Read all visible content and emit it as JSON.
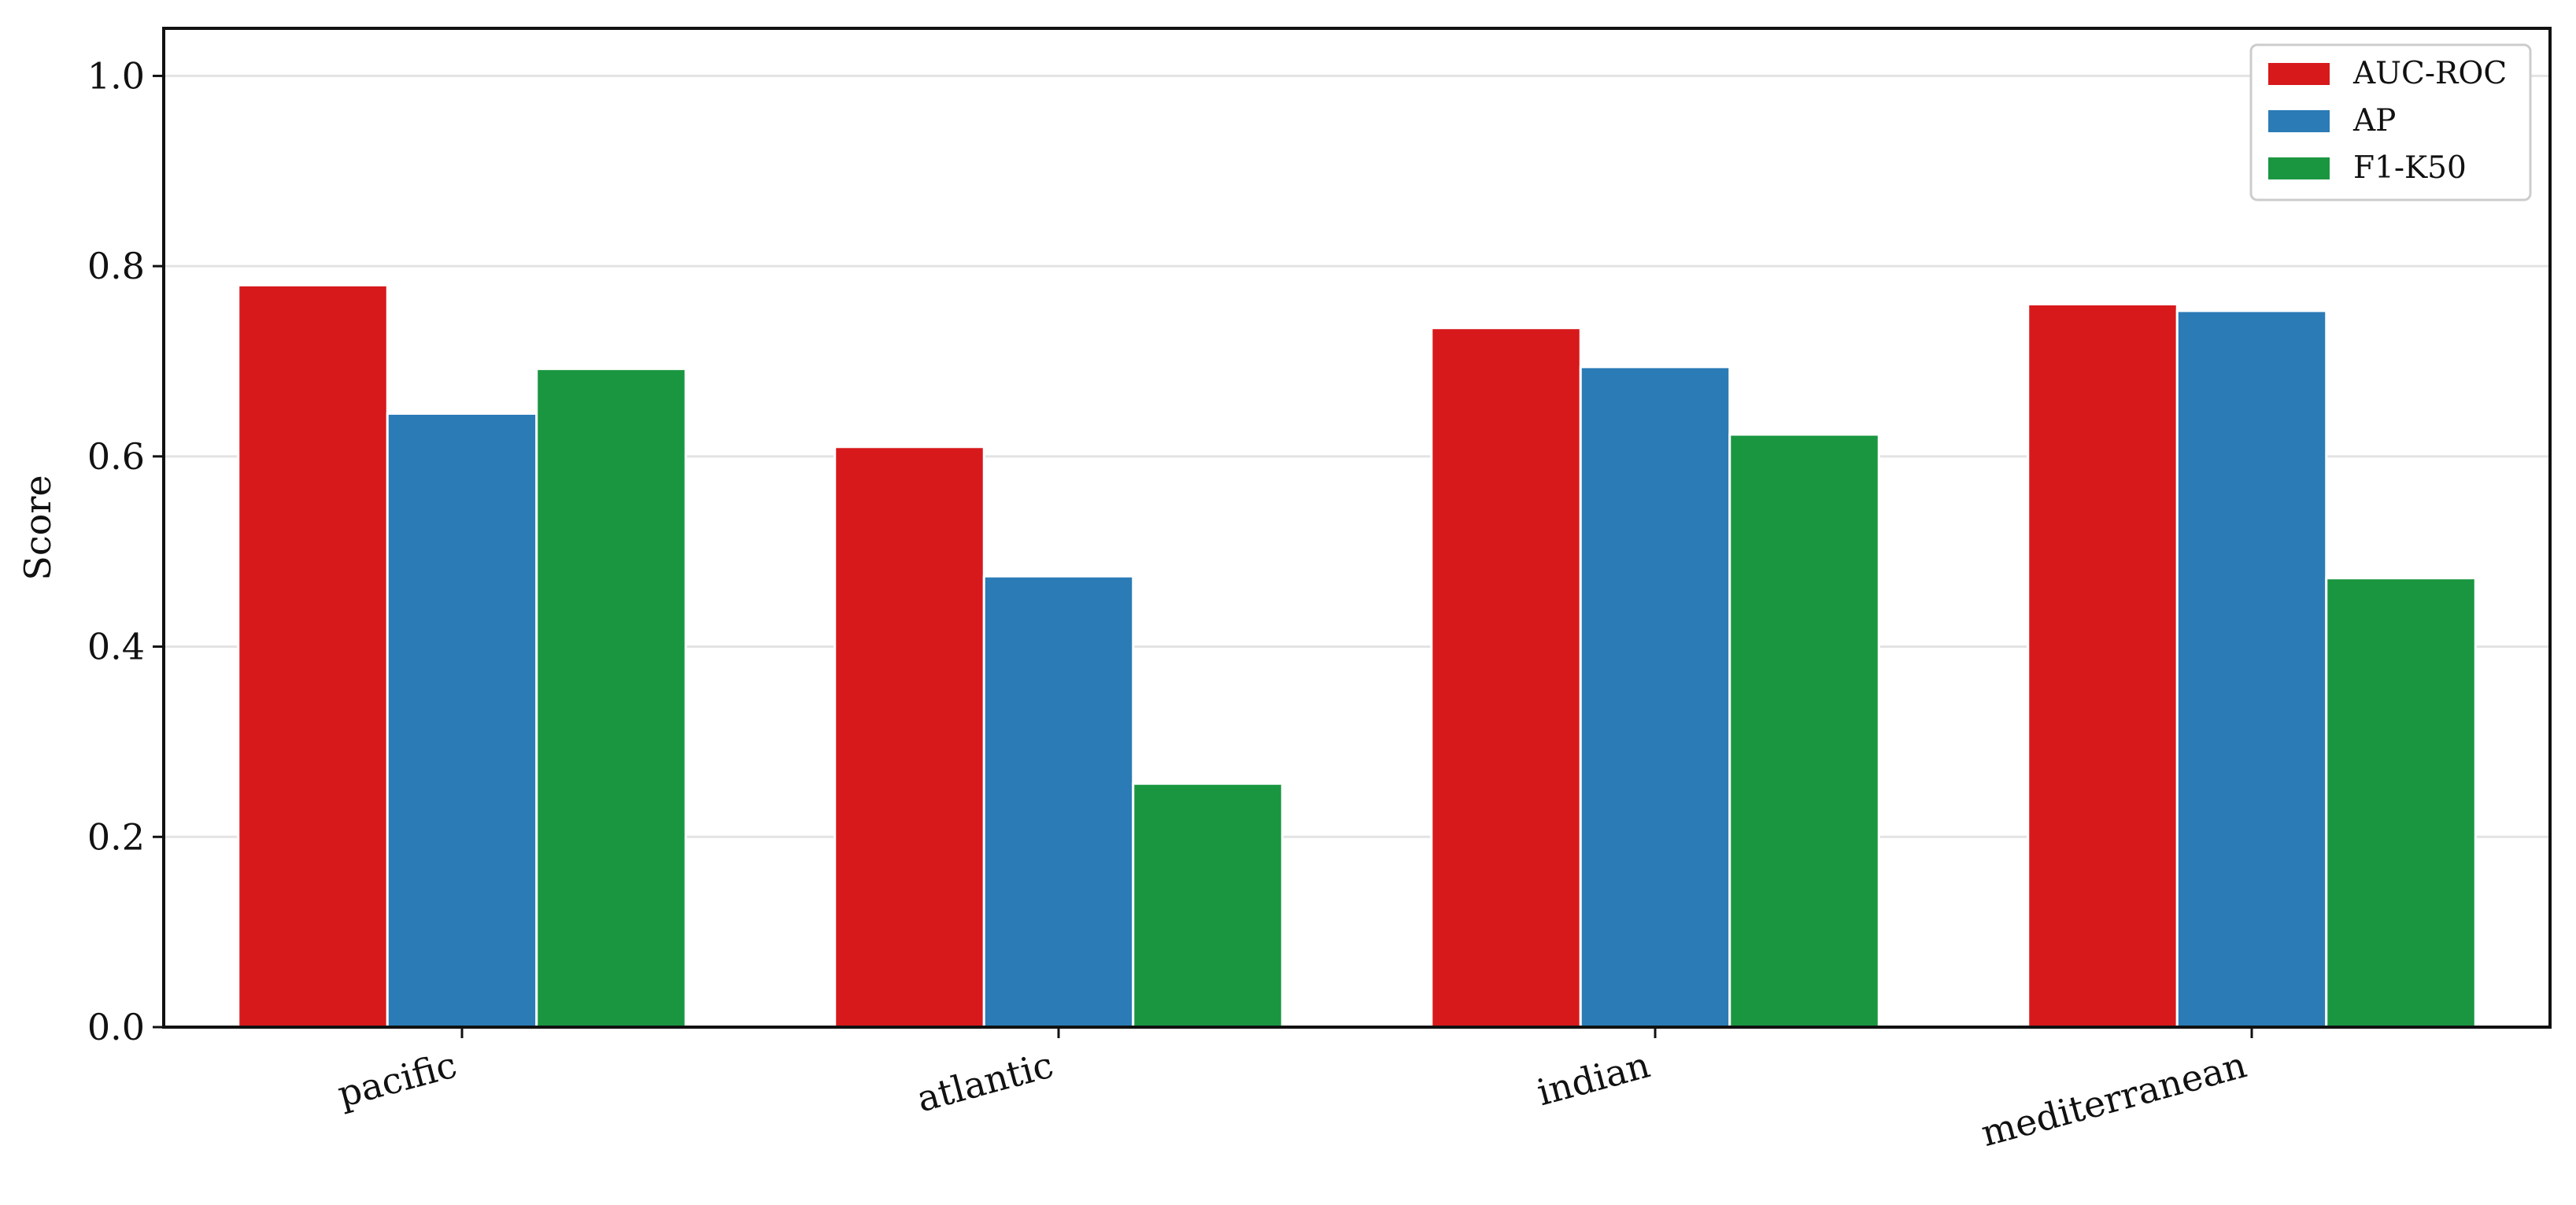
{
  "chart_data": {
    "type": "bar",
    "title": "",
    "xlabel": "",
    "ylabel": "Score",
    "categories": [
      "pacific",
      "atlantic",
      "indian",
      "mediterranean"
    ],
    "series": [
      {
        "name": "AUC-ROC",
        "color": "#d7191c",
        "values": [
          0.78,
          0.61,
          0.735,
          0.76
        ]
      },
      {
        "name": "AP",
        "color": "#2b7bb6",
        "values": [
          0.645,
          0.474,
          0.694,
          0.753
        ]
      },
      {
        "name": "F1-K50",
        "color": "#1a9641",
        "values": [
          0.692,
          0.256,
          0.623,
          0.472
        ]
      }
    ],
    "ylim": [
      0,
      1.05
    ],
    "yticks": [
      "0.0",
      "0.2",
      "0.4",
      "0.6",
      "0.8",
      "1.0"
    ],
    "grid": "horizontal",
    "legend_position": "top-right"
  }
}
